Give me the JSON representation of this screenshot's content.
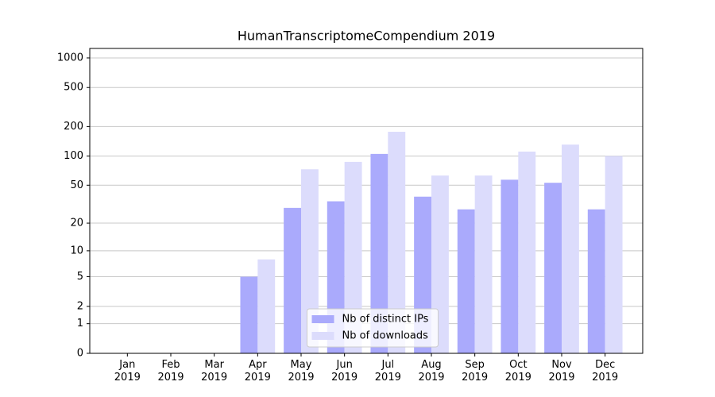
{
  "chart_data": {
    "type": "bar",
    "title": "HumanTranscriptomeCompendium 2019",
    "categories": [
      "Jan\n2019",
      "Feb\n2019",
      "Mar\n2019",
      "Apr\n2019",
      "May\n2019",
      "Jun\n2019",
      "Jul\n2019",
      "Aug\n2019",
      "Sep\n2019",
      "Oct\n2019",
      "Nov\n2019",
      "Dec\n2019"
    ],
    "series": [
      {
        "name": "Nb of distinct IPs",
        "color": "#aaaafc",
        "values": [
          0,
          0,
          0,
          5,
          29,
          34,
          105,
          38,
          28,
          57,
          53,
          28
        ]
      },
      {
        "name": "Nb of downloads",
        "color": "#dcdcfc",
        "values": [
          0,
          0,
          0,
          8,
          73,
          87,
          177,
          63,
          63,
          111,
          131,
          100
        ]
      }
    ],
    "yscale": "log1p",
    "ylim": [
      0,
      1249
    ],
    "yticks": [
      0,
      1,
      2,
      5,
      10,
      20,
      50,
      100,
      200,
      500,
      1000
    ],
    "grid": true,
    "legend": "lower center"
  }
}
